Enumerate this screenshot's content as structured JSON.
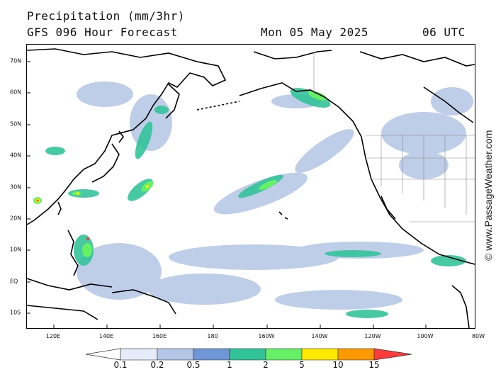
{
  "header": {
    "title": "Precipitation (mm/3hr)",
    "model": "GFS 096 Hour Forecast",
    "date": "Mon 05 May 2025",
    "time": "06 UTC"
  },
  "lat_labels": [
    "70N",
    "60N",
    "50N",
    "40N",
    "30N",
    "20N",
    "10N",
    "EQ",
    "10S"
  ],
  "lon_labels": [
    "120E",
    "140E",
    "160E",
    "180",
    "160W",
    "140W",
    "120W",
    "100W",
    "80W"
  ],
  "colorbar": {
    "labels": [
      "0.1",
      "0.2",
      "0.5",
      "1",
      "2",
      "5",
      "10",
      "15"
    ],
    "colors": [
      "#ffffff",
      "#e6ecf7",
      "#b3c6e6",
      "#6f96d6",
      "#33c39a",
      "#66f066",
      "#ffea00",
      "#ff9900",
      "#ff3c3c"
    ]
  },
  "watermark": "© www.PassageWeather.com"
}
